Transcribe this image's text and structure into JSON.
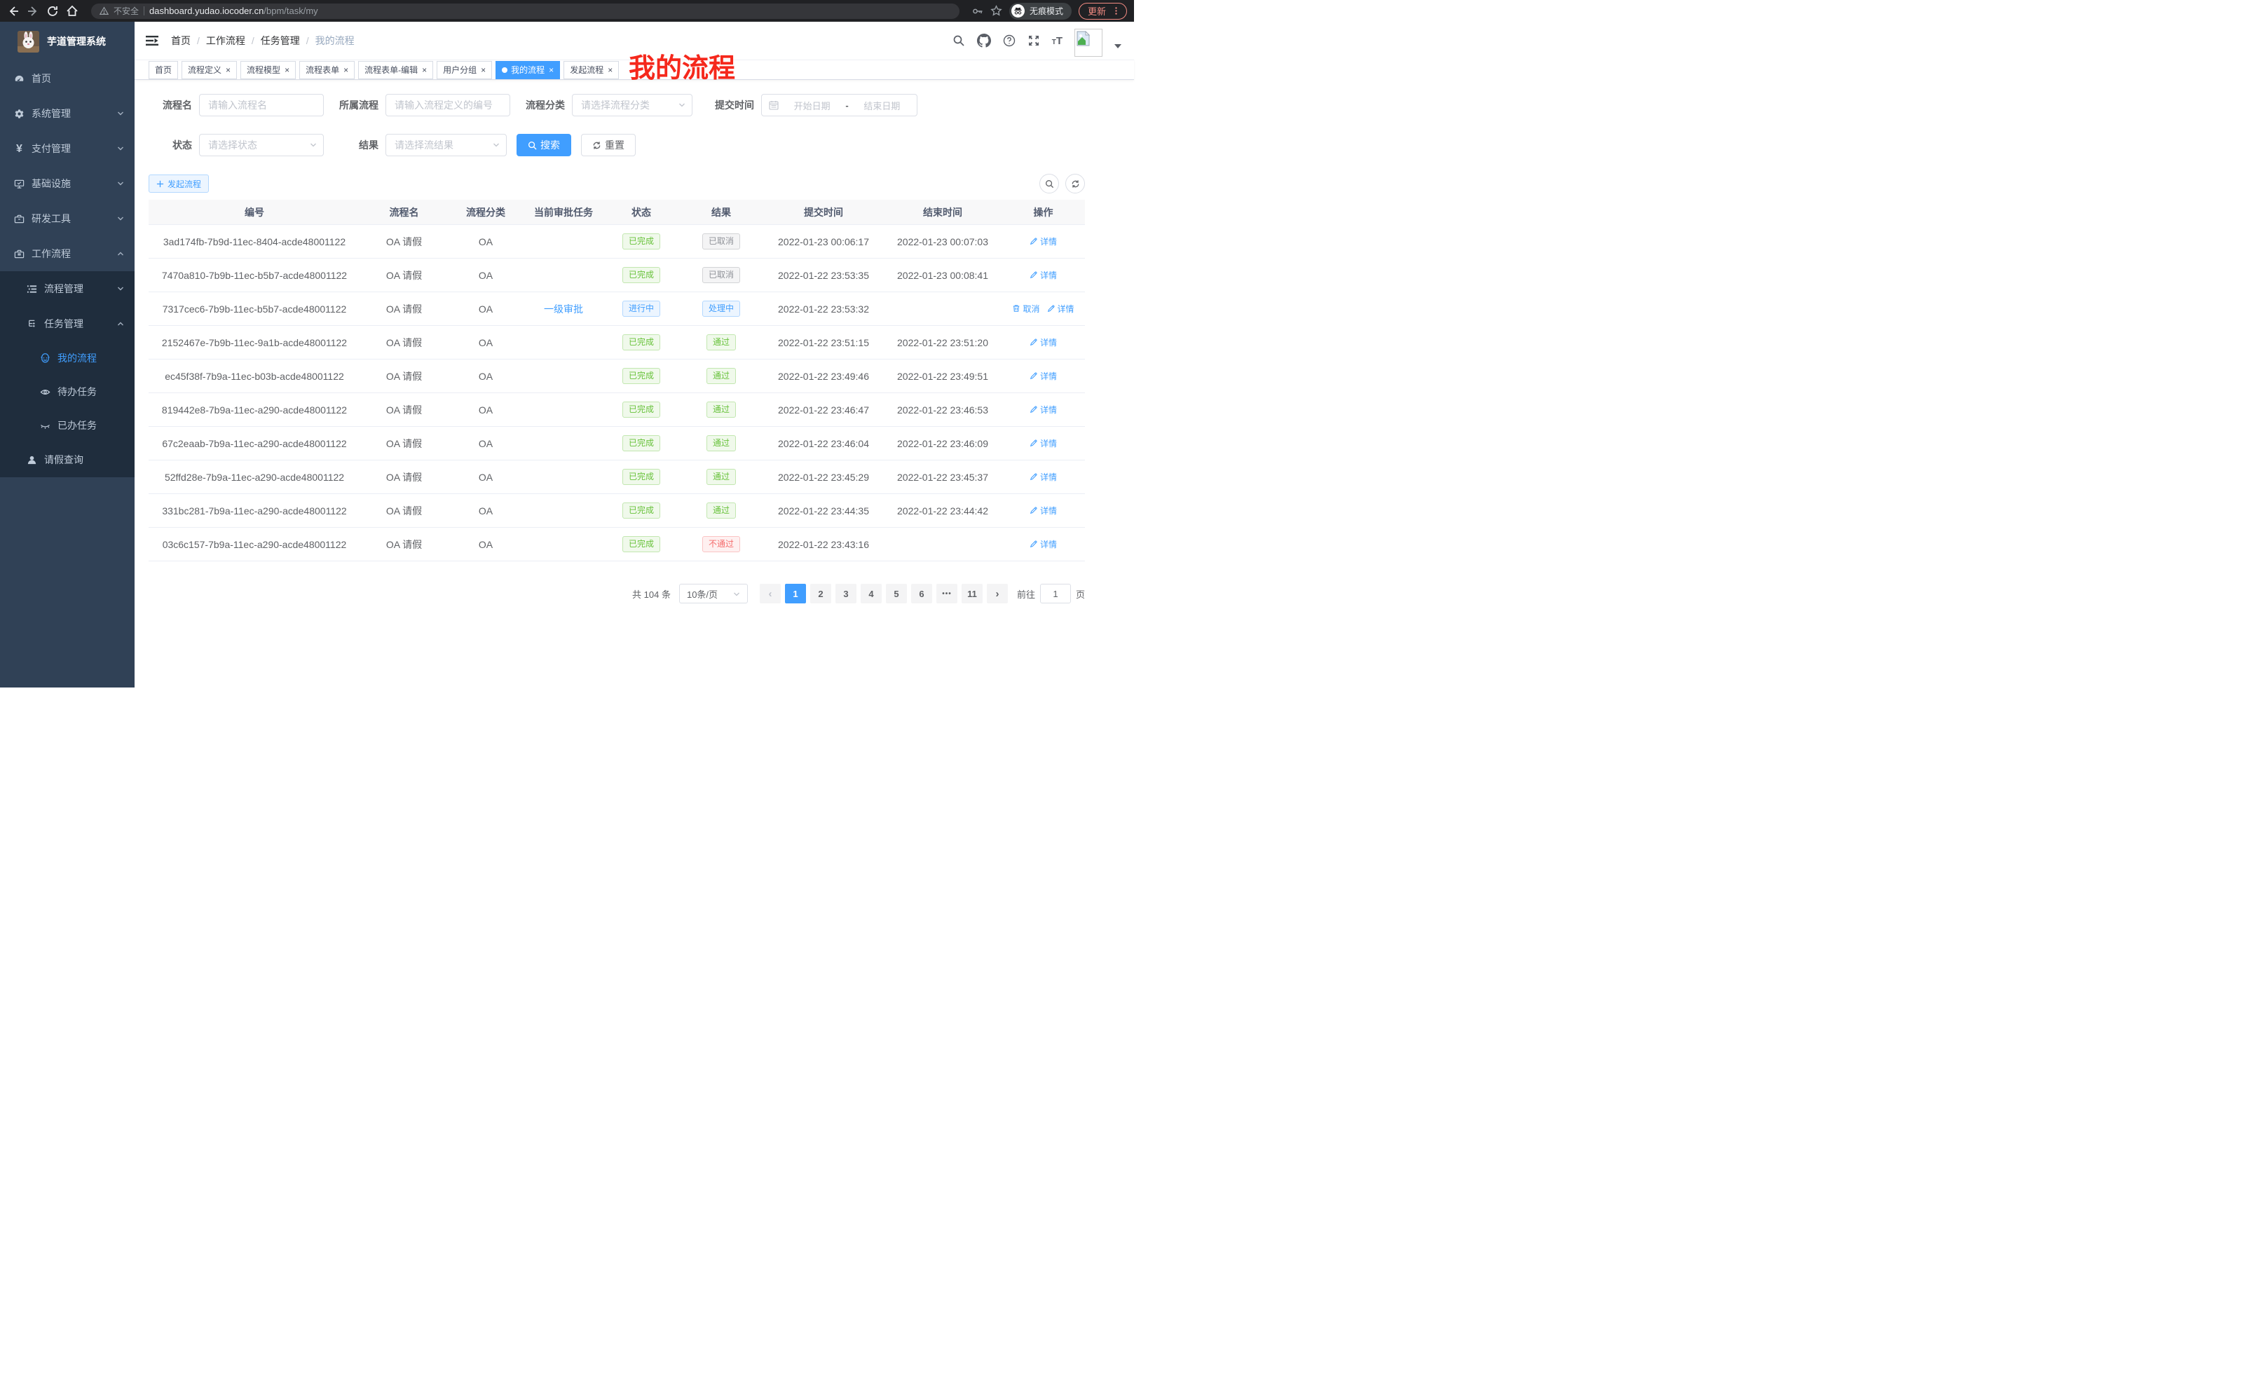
{
  "browser": {
    "security_label": "不安全",
    "url_domain": "dashboard.yudao.iocoder.cn",
    "url_path": "/bpm/task/my",
    "incognito_label": "无痕模式",
    "update_label": "更新"
  },
  "sidebar": {
    "title": "芋道管理系统",
    "items": [
      {
        "label": "首页"
      },
      {
        "label": "系统管理"
      },
      {
        "label": "支付管理"
      },
      {
        "label": "基础设施"
      },
      {
        "label": "研发工具"
      },
      {
        "label": "工作流程"
      }
    ],
    "workflow": {
      "process_mgmt": "流程管理",
      "task_mgmt": "任务管理",
      "my_process": "我的流程",
      "todo_tasks": "待办任务",
      "done_tasks": "已办任务",
      "leave_query": "请假查询"
    }
  },
  "breadcrumb": [
    "首页",
    "工作流程",
    "任务管理",
    "我的流程"
  ],
  "annotation": "我的流程",
  "tabs": [
    {
      "label": "首页",
      "closable": false,
      "active": false
    },
    {
      "label": "流程定义",
      "closable": true,
      "active": false
    },
    {
      "label": "流程模型",
      "closable": true,
      "active": false
    },
    {
      "label": "流程表单",
      "closable": true,
      "active": false
    },
    {
      "label": "流程表单-编辑",
      "closable": true,
      "active": false
    },
    {
      "label": "用户分组",
      "closable": true,
      "active": false
    },
    {
      "label": "我的流程",
      "closable": true,
      "active": true
    },
    {
      "label": "发起流程",
      "closable": true,
      "active": false
    }
  ],
  "filters": {
    "process_name": {
      "label": "流程名",
      "placeholder": "请输入流程名"
    },
    "process_def": {
      "label": "所属流程",
      "placeholder": "请输入流程定义的编号"
    },
    "category": {
      "label": "流程分类",
      "placeholder": "请选择流程分类"
    },
    "submit_time": {
      "label": "提交时间",
      "start_placeholder": "开始日期",
      "separator": "-",
      "end_placeholder": "结束日期"
    },
    "status": {
      "label": "状态",
      "placeholder": "请选择状态"
    },
    "result": {
      "label": "结果",
      "placeholder": "请选择流结果"
    },
    "search_button": "搜索",
    "reset_button": "重置"
  },
  "toolbar": {
    "create_button": "发起流程"
  },
  "table": {
    "headers": [
      "编号",
      "流程名",
      "流程分类",
      "当前审批任务",
      "状态",
      "结果",
      "提交时间",
      "结束时间",
      "操作"
    ],
    "action_labels": {
      "cancel": "取消",
      "detail": "详情"
    },
    "rows": [
      {
        "id": "3ad174fb-7b9d-11ec-8404-acde48001122",
        "name": "OA 请假",
        "category": "OA",
        "task": "",
        "status": "已完成",
        "status_type": "success",
        "result": "已取消",
        "result_type": "info",
        "submit": "2022-01-23 00:06:17",
        "end": "2022-01-23 00:07:03",
        "can_cancel": false
      },
      {
        "id": "7470a810-7b9b-11ec-b5b7-acde48001122",
        "name": "OA 请假",
        "category": "OA",
        "task": "",
        "status": "已完成",
        "status_type": "success",
        "result": "已取消",
        "result_type": "info",
        "submit": "2022-01-22 23:53:35",
        "end": "2022-01-23 00:08:41",
        "can_cancel": false
      },
      {
        "id": "7317cec6-7b9b-11ec-b5b7-acde48001122",
        "name": "OA 请假",
        "category": "OA",
        "task": "一级审批",
        "status": "进行中",
        "status_type": "primary",
        "result": "处理中",
        "result_type": "primary",
        "submit": "2022-01-22 23:53:32",
        "end": "",
        "can_cancel": true
      },
      {
        "id": "2152467e-7b9b-11ec-9a1b-acde48001122",
        "name": "OA 请假",
        "category": "OA",
        "task": "",
        "status": "已完成",
        "status_type": "success",
        "result": "通过",
        "result_type": "success",
        "submit": "2022-01-22 23:51:15",
        "end": "2022-01-22 23:51:20",
        "can_cancel": false
      },
      {
        "id": "ec45f38f-7b9a-11ec-b03b-acde48001122",
        "name": "OA 请假",
        "category": "OA",
        "task": "",
        "status": "已完成",
        "status_type": "success",
        "result": "通过",
        "result_type": "success",
        "submit": "2022-01-22 23:49:46",
        "end": "2022-01-22 23:49:51",
        "can_cancel": false
      },
      {
        "id": "819442e8-7b9a-11ec-a290-acde48001122",
        "name": "OA 请假",
        "category": "OA",
        "task": "",
        "status": "已完成",
        "status_type": "success",
        "result": "通过",
        "result_type": "success",
        "submit": "2022-01-22 23:46:47",
        "end": "2022-01-22 23:46:53",
        "can_cancel": false
      },
      {
        "id": "67c2eaab-7b9a-11ec-a290-acde48001122",
        "name": "OA 请假",
        "category": "OA",
        "task": "",
        "status": "已完成",
        "status_type": "success",
        "result": "通过",
        "result_type": "success",
        "submit": "2022-01-22 23:46:04",
        "end": "2022-01-22 23:46:09",
        "can_cancel": false
      },
      {
        "id": "52ffd28e-7b9a-11ec-a290-acde48001122",
        "name": "OA 请假",
        "category": "OA",
        "task": "",
        "status": "已完成",
        "status_type": "success",
        "result": "通过",
        "result_type": "success",
        "submit": "2022-01-22 23:45:29",
        "end": "2022-01-22 23:45:37",
        "can_cancel": false
      },
      {
        "id": "331bc281-7b9a-11ec-a290-acde48001122",
        "name": "OA 请假",
        "category": "OA",
        "task": "",
        "status": "已完成",
        "status_type": "success",
        "result": "通过",
        "result_type": "success",
        "submit": "2022-01-22 23:44:35",
        "end": "2022-01-22 23:44:42",
        "can_cancel": false
      },
      {
        "id": "03c6c157-7b9a-11ec-a290-acde48001122",
        "name": "OA 请假",
        "category": "OA",
        "task": "",
        "status": "已完成",
        "status_type": "success",
        "result": "不通过",
        "result_type": "danger",
        "submit": "2022-01-22 23:43:16",
        "end": "",
        "can_cancel": false
      }
    ]
  },
  "pagination": {
    "total_label": "共 104 条",
    "page_size": "10条/页",
    "prev": "‹",
    "next": "›",
    "pages": [
      {
        "label": "1",
        "active": true
      },
      {
        "label": "2"
      },
      {
        "label": "3"
      },
      {
        "label": "4"
      },
      {
        "label": "5"
      },
      {
        "label": "6"
      },
      {
        "label": "•••",
        "more": true
      },
      {
        "label": "11"
      }
    ],
    "goto_label": "前往",
    "goto_value": "1",
    "goto_suffix": "页"
  },
  "colors": {
    "primary": "#409eff",
    "success": "#67c23a",
    "danger": "#f56c6c",
    "info": "#909399",
    "annotation_red": "#f5281c",
    "sidebar_bg": "#304156",
    "submenu_bg": "#1f2d3d"
  }
}
